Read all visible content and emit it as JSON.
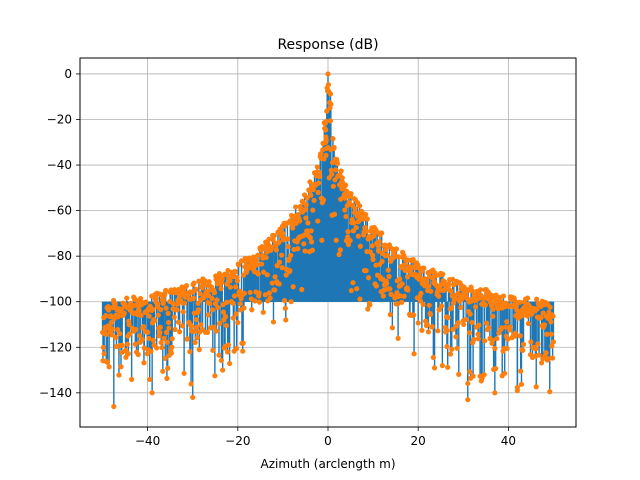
{
  "chart_data": {
    "type": "line",
    "style": "stem with markers",
    "title": "Response (dB)",
    "xlabel": "Azimuth (arclength m)",
    "ylabel": "",
    "xlim": [
      -55,
      55
    ],
    "ylim": [
      -155,
      7
    ],
    "xticks": [
      -40,
      -20,
      0,
      20,
      40
    ],
    "yticks": [
      0,
      -20,
      -40,
      -60,
      -80,
      -100,
      -120,
      -140
    ],
    "grid": true,
    "baseline": -100,
    "colors": {
      "stem": "#1f77b4",
      "marker": "#ff7f0e"
    },
    "x_range_data": [
      -50,
      50
    ],
    "peak": {
      "x": 0,
      "y": 0
    },
    "envelope": [
      {
        "x": -50,
        "y": -100
      },
      {
        "x": -40,
        "y": -97
      },
      {
        "x": -30,
        "y": -92
      },
      {
        "x": -20,
        "y": -83
      },
      {
        "x": -15,
        "y": -76
      },
      {
        "x": -10,
        "y": -66
      },
      {
        "x": -5,
        "y": -52
      },
      {
        "x": -2,
        "y": -38
      },
      {
        "x": -1,
        "y": -25
      },
      {
        "x": 0,
        "y": 0
      },
      {
        "x": 1,
        "y": -25
      },
      {
        "x": 2,
        "y": -38
      },
      {
        "x": 5,
        "y": -52
      },
      {
        "x": 10,
        "y": -66
      },
      {
        "x": 15,
        "y": -76
      },
      {
        "x": 20,
        "y": -83
      },
      {
        "x": 30,
        "y": -92
      },
      {
        "x": 40,
        "y": -97
      },
      {
        "x": 50,
        "y": -100
      }
    ],
    "notable_minima": [
      {
        "x": -47.5,
        "y": -146
      },
      {
        "x": -39,
        "y": -140
      },
      {
        "x": -30,
        "y": -142
      },
      {
        "x": 31,
        "y": -143
      },
      {
        "x": 37,
        "y": -140
      },
      {
        "x": 42,
        "y": -139
      }
    ]
  }
}
